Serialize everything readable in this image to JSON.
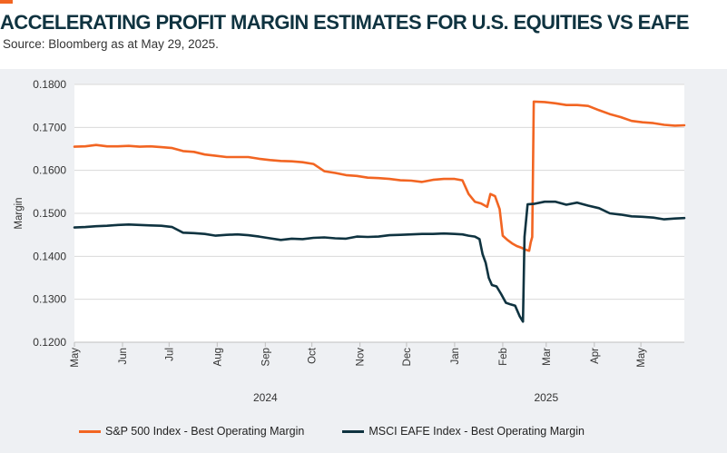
{
  "header": {
    "title": "ACCELERATING PROFIT MARGIN ESTIMATES FOR U.S. EQUITIES VS EAFE",
    "source": "Source: Bloomberg as at May 29, 2025."
  },
  "colors": {
    "accent": "#f26522",
    "title": "#0f3340",
    "panel_background": "#eef0f3",
    "plot_background": "#ffffff",
    "grid": "#d9d9d9"
  },
  "chart_data": {
    "type": "line",
    "title": "ACCELERATING PROFIT MARGIN ESTIMATES FOR U.S. EQUITIES VS EAFE",
    "xlabel": "",
    "ylabel": "Margin",
    "x_range": [
      "2024-05-01",
      "2025-05-29"
    ],
    "ylim": [
      0.12,
      0.18
    ],
    "y_ticks": [
      0.12,
      0.13,
      0.14,
      0.15,
      0.16,
      0.17,
      0.18
    ],
    "y_tick_labels": [
      "0.1200",
      "0.1300",
      "0.1400",
      "0.1500",
      "0.1600",
      "0.1700",
      "0.1800"
    ],
    "x_ticks": [
      {
        "date": "2024-05-01",
        "label": "May"
      },
      {
        "date": "2024-06-01",
        "label": "Jun"
      },
      {
        "date": "2024-07-01",
        "label": "Jul"
      },
      {
        "date": "2024-08-01",
        "label": "Aug"
      },
      {
        "date": "2024-09-01",
        "label": "Sep"
      },
      {
        "date": "2024-10-01",
        "label": "Oct"
      },
      {
        "date": "2024-11-01",
        "label": "Nov"
      },
      {
        "date": "2024-12-01",
        "label": "Dec"
      },
      {
        "date": "2025-01-01",
        "label": "Jan"
      },
      {
        "date": "2025-02-01",
        "label": "Feb"
      },
      {
        "date": "2025-03-01",
        "label": "Mar"
      },
      {
        "date": "2025-04-01",
        "label": "Apr"
      },
      {
        "date": "2025-05-01",
        "label": "May"
      }
    ],
    "year_labels": [
      {
        "date": "2024-09-01",
        "label": "2024"
      },
      {
        "date": "2025-03-01",
        "label": "2025"
      }
    ],
    "grid": true,
    "legend_position": "bottom",
    "series": [
      {
        "name": "S&P 500 Index - Best Operating Margin",
        "color": "#f26522",
        "points": [
          [
            "2024-05-01",
            0.1655
          ],
          [
            "2024-05-08",
            0.1656
          ],
          [
            "2024-05-15",
            0.1659
          ],
          [
            "2024-05-22",
            0.1656
          ],
          [
            "2024-05-29",
            0.1656
          ],
          [
            "2024-06-05",
            0.1657
          ],
          [
            "2024-06-12",
            0.1655
          ],
          [
            "2024-06-19",
            0.1656
          ],
          [
            "2024-06-26",
            0.1654
          ],
          [
            "2024-07-03",
            0.1652
          ],
          [
            "2024-07-10",
            0.1645
          ],
          [
            "2024-07-17",
            0.1643
          ],
          [
            "2024-07-24",
            0.1637
          ],
          [
            "2024-07-31",
            0.1634
          ],
          [
            "2024-08-07",
            0.1631
          ],
          [
            "2024-08-14",
            0.1631
          ],
          [
            "2024-08-21",
            0.1631
          ],
          [
            "2024-08-28",
            0.1627
          ],
          [
            "2024-09-04",
            0.1624
          ],
          [
            "2024-09-11",
            0.1622
          ],
          [
            "2024-09-18",
            0.1621
          ],
          [
            "2024-09-25",
            0.1619
          ],
          [
            "2024-10-02",
            0.1615
          ],
          [
            "2024-10-09",
            0.1598
          ],
          [
            "2024-10-16",
            0.1594
          ],
          [
            "2024-10-23",
            0.1589
          ],
          [
            "2024-10-30",
            0.1587
          ],
          [
            "2024-11-06",
            0.1583
          ],
          [
            "2024-11-13",
            0.1582
          ],
          [
            "2024-11-20",
            0.158
          ],
          [
            "2024-11-27",
            0.1577
          ],
          [
            "2024-12-04",
            0.1576
          ],
          [
            "2024-12-11",
            0.1573
          ],
          [
            "2024-12-18",
            0.1578
          ],
          [
            "2024-12-25",
            0.158
          ],
          [
            "2025-01-01",
            0.158
          ],
          [
            "2025-01-06",
            0.1577
          ],
          [
            "2025-01-10",
            0.1545
          ],
          [
            "2025-01-14",
            0.1527
          ],
          [
            "2025-01-18",
            0.1523
          ],
          [
            "2025-01-22",
            0.1515
          ],
          [
            "2025-01-24",
            0.1545
          ],
          [
            "2025-01-27",
            0.154
          ],
          [
            "2025-01-30",
            0.151
          ],
          [
            "2025-02-01",
            0.1448
          ],
          [
            "2025-02-04",
            0.1438
          ],
          [
            "2025-02-07",
            0.143
          ],
          [
            "2025-02-10",
            0.1424
          ],
          [
            "2025-02-13",
            0.142
          ],
          [
            "2025-02-16",
            0.1415
          ],
          [
            "2025-02-18",
            0.1413
          ],
          [
            "2025-02-19",
            0.1432
          ],
          [
            "2025-02-20",
            0.1445
          ],
          [
            "2025-02-21",
            0.176
          ],
          [
            "2025-02-28",
            0.1759
          ],
          [
            "2025-03-07",
            0.1756
          ],
          [
            "2025-03-14",
            0.1752
          ],
          [
            "2025-03-21",
            0.1752
          ],
          [
            "2025-03-28",
            0.175
          ],
          [
            "2025-04-04",
            0.174
          ],
          [
            "2025-04-11",
            0.1731
          ],
          [
            "2025-04-18",
            0.1724
          ],
          [
            "2025-04-25",
            0.1715
          ],
          [
            "2025-05-02",
            0.1712
          ],
          [
            "2025-05-09",
            0.171
          ],
          [
            "2025-05-16",
            0.1706
          ],
          [
            "2025-05-23",
            0.1704
          ],
          [
            "2025-05-29",
            0.1705
          ]
        ]
      },
      {
        "name": "MSCI EAFE Index - Best Operating Margin",
        "color": "#0f3340",
        "points": [
          [
            "2024-05-01",
            0.1467
          ],
          [
            "2024-05-08",
            0.1468
          ],
          [
            "2024-05-15",
            0.147
          ],
          [
            "2024-05-22",
            0.1471
          ],
          [
            "2024-05-29",
            0.1473
          ],
          [
            "2024-06-05",
            0.1474
          ],
          [
            "2024-06-12",
            0.1473
          ],
          [
            "2024-06-19",
            0.1472
          ],
          [
            "2024-06-26",
            0.1471
          ],
          [
            "2024-07-03",
            0.1468
          ],
          [
            "2024-07-10",
            0.1455
          ],
          [
            "2024-07-17",
            0.1454
          ],
          [
            "2024-07-24",
            0.1452
          ],
          [
            "2024-07-31",
            0.1448
          ],
          [
            "2024-08-07",
            0.145
          ],
          [
            "2024-08-14",
            0.1451
          ],
          [
            "2024-08-21",
            0.1449
          ],
          [
            "2024-08-28",
            0.1446
          ],
          [
            "2024-09-04",
            0.1442
          ],
          [
            "2024-09-11",
            0.1438
          ],
          [
            "2024-09-18",
            0.1441
          ],
          [
            "2024-09-25",
            0.144
          ],
          [
            "2024-10-02",
            0.1443
          ],
          [
            "2024-10-09",
            0.1444
          ],
          [
            "2024-10-16",
            0.1442
          ],
          [
            "2024-10-23",
            0.1441
          ],
          [
            "2024-10-30",
            0.1446
          ],
          [
            "2024-11-06",
            0.1445
          ],
          [
            "2024-11-13",
            0.1446
          ],
          [
            "2024-11-20",
            0.1449
          ],
          [
            "2024-11-27",
            0.145
          ],
          [
            "2024-12-04",
            0.1451
          ],
          [
            "2024-12-11",
            0.1452
          ],
          [
            "2024-12-18",
            0.1452
          ],
          [
            "2024-12-25",
            0.1453
          ],
          [
            "2025-01-01",
            0.1452
          ],
          [
            "2025-01-06",
            0.1451
          ],
          [
            "2025-01-10",
            0.1448
          ],
          [
            "2025-01-14",
            0.1446
          ],
          [
            "2025-01-17",
            0.144
          ],
          [
            "2025-01-19",
            0.1405
          ],
          [
            "2025-01-21",
            0.1385
          ],
          [
            "2025-01-23",
            0.135
          ],
          [
            "2025-01-25",
            0.1333
          ],
          [
            "2025-01-28",
            0.133
          ],
          [
            "2025-01-31",
            0.1312
          ],
          [
            "2025-02-03",
            0.1292
          ],
          [
            "2025-02-06",
            0.1288
          ],
          [
            "2025-02-09",
            0.1285
          ],
          [
            "2025-02-12",
            0.126
          ],
          [
            "2025-02-14",
            0.1248
          ],
          [
            "2025-02-15",
            0.1445
          ],
          [
            "2025-02-17",
            0.1521
          ],
          [
            "2025-02-21",
            0.1522
          ],
          [
            "2025-02-28",
            0.1527
          ],
          [
            "2025-03-07",
            0.1527
          ],
          [
            "2025-03-14",
            0.152
          ],
          [
            "2025-03-21",
            0.1525
          ],
          [
            "2025-03-28",
            0.1518
          ],
          [
            "2025-04-04",
            0.1512
          ],
          [
            "2025-04-11",
            0.15
          ],
          [
            "2025-04-18",
            0.1497
          ],
          [
            "2025-04-25",
            0.1493
          ],
          [
            "2025-05-02",
            0.1492
          ],
          [
            "2025-05-09",
            0.149
          ],
          [
            "2025-05-16",
            0.1486
          ],
          [
            "2025-05-23",
            0.1488
          ],
          [
            "2025-05-29",
            0.1489
          ]
        ]
      }
    ]
  }
}
